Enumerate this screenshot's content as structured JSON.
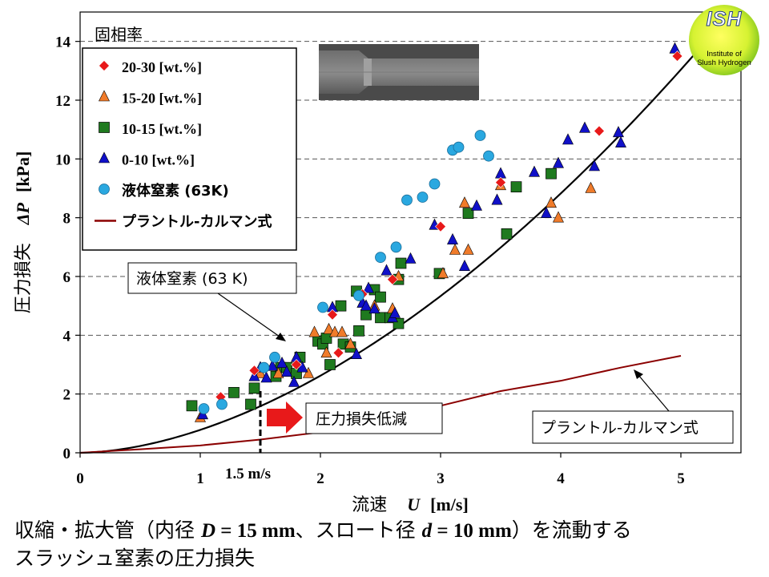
{
  "caption": {
    "line1_a": "収縮・拡大管（内径 ",
    "var_D": "D",
    "line1_b": " = 15 mm",
    "line1_c": "、スロート径 ",
    "var_d": "d",
    "line1_d": " = 10 mm",
    "line1_e": "）を流動する",
    "line2": "スラッシュ窒素の圧力損失"
  },
  "logo": {
    "name": "ISH",
    "line1": "Institute of",
    "line2": "Slush Hydrogen"
  },
  "colors": {
    "red": "#e8191a",
    "orange": "#f07b2a",
    "green": "#1f7a1f",
    "blue": "#1010c8",
    "cyan": "#2aa8e0",
    "prandtl": "#8b0000"
  },
  "chart_data": {
    "type": "scatter",
    "title": "",
    "xlabel_prefix": "流速",
    "xlabel_var": "U",
    "xlabel_unit": "[m/s]",
    "ylabel_prefix": "圧力損失",
    "ylabel_var": "ΔP",
    "ylabel_unit": "[kPa]",
    "xlim": [
      0,
      5.5
    ],
    "ylim": [
      0,
      15
    ],
    "xticks": [
      0,
      1,
      2,
      3,
      4,
      5
    ],
    "yticks": [
      0,
      2,
      4,
      6,
      8,
      10,
      12,
      14
    ],
    "grid": "horizontal dashed",
    "legend_title": "固相率",
    "legend_position": "top-left",
    "series": [
      {
        "name": "20-30 [wt.%]",
        "marker": "diamond",
        "color": "#e8191a",
        "points": [
          [
            1.17,
            1.9
          ],
          [
            1.45,
            2.8
          ],
          [
            1.8,
            3.0
          ],
          [
            2.1,
            4.7
          ],
          [
            2.15,
            3.4
          ],
          [
            2.35,
            5.4
          ],
          [
            2.6,
            5.9
          ],
          [
            3.0,
            7.7
          ],
          [
            3.5,
            9.2
          ],
          [
            4.32,
            10.95
          ],
          [
            4.97,
            13.5
          ]
        ]
      },
      {
        "name": "15-20 [wt.%]",
        "marker": "triangle",
        "color": "#f07b2a",
        "points": [
          [
            1.0,
            1.2
          ],
          [
            1.5,
            2.7
          ],
          [
            1.65,
            2.7
          ],
          [
            1.8,
            3.1
          ],
          [
            1.9,
            2.7
          ],
          [
            1.95,
            4.1
          ],
          [
            2.05,
            3.4
          ],
          [
            2.07,
            4.2
          ],
          [
            2.12,
            4.1
          ],
          [
            2.18,
            4.1
          ],
          [
            2.25,
            3.7
          ],
          [
            2.35,
            5.1
          ],
          [
            2.45,
            5.0
          ],
          [
            2.6,
            4.9
          ],
          [
            2.65,
            6.0
          ],
          [
            3.02,
            6.1
          ],
          [
            3.12,
            6.9
          ],
          [
            3.2,
            8.5
          ],
          [
            3.23,
            6.9
          ],
          [
            3.5,
            9.1
          ],
          [
            3.92,
            8.5
          ],
          [
            3.98,
            8.0
          ],
          [
            4.25,
            9.0
          ]
        ]
      },
      {
        "name": "10-15 [wt.%]",
        "marker": "square",
        "color": "#1f7a1f",
        "points": [
          [
            0.93,
            1.6
          ],
          [
            1.28,
            2.05
          ],
          [
            1.42,
            1.65
          ],
          [
            1.45,
            2.2
          ],
          [
            1.63,
            2.6
          ],
          [
            1.67,
            2.9
          ],
          [
            1.72,
            2.9
          ],
          [
            1.8,
            2.7
          ],
          [
            1.83,
            3.25
          ],
          [
            1.98,
            3.8
          ],
          [
            2.02,
            3.7
          ],
          [
            2.05,
            3.9
          ],
          [
            2.08,
            3.0
          ],
          [
            2.17,
            5.0
          ],
          [
            2.19,
            3.7
          ],
          [
            2.25,
            3.6
          ],
          [
            2.3,
            5.5
          ],
          [
            2.32,
            4.15
          ],
          [
            2.38,
            4.7
          ],
          [
            2.45,
            5.55
          ],
          [
            2.5,
            5.3
          ],
          [
            2.5,
            4.6
          ],
          [
            2.58,
            4.6
          ],
          [
            2.65,
            4.4
          ],
          [
            2.65,
            5.9
          ],
          [
            2.67,
            6.45
          ],
          [
            2.99,
            6.1
          ],
          [
            3.23,
            8.15
          ],
          [
            3.55,
            7.45
          ],
          [
            3.63,
            9.05
          ],
          [
            3.92,
            9.5
          ]
        ]
      },
      {
        "name": "0-10 [wt.%]",
        "marker": "triangle",
        "color": "#1010c8",
        "points": [
          [
            1.02,
            1.3
          ],
          [
            1.45,
            2.6
          ],
          [
            1.5,
            2.9
          ],
          [
            1.55,
            2.55
          ],
          [
            1.6,
            2.95
          ],
          [
            1.68,
            3.05
          ],
          [
            1.72,
            2.75
          ],
          [
            1.78,
            2.4
          ],
          [
            1.8,
            3.25
          ],
          [
            1.85,
            2.9
          ],
          [
            2.1,
            4.95
          ],
          [
            2.3,
            3.35
          ],
          [
            2.35,
            5.1
          ],
          [
            2.38,
            5.0
          ],
          [
            2.4,
            5.6
          ],
          [
            2.45,
            4.9
          ],
          [
            2.55,
            6.2
          ],
          [
            2.6,
            4.6
          ],
          [
            2.62,
            4.75
          ],
          [
            2.75,
            6.6
          ],
          [
            2.95,
            7.75
          ],
          [
            3.1,
            7.25
          ],
          [
            3.2,
            6.35
          ],
          [
            3.3,
            8.4
          ],
          [
            3.47,
            8.6
          ],
          [
            3.5,
            9.5
          ],
          [
            3.78,
            9.55
          ],
          [
            3.88,
            8.15
          ],
          [
            3.98,
            9.85
          ],
          [
            4.06,
            10.65
          ],
          [
            4.2,
            11.05
          ],
          [
            4.28,
            9.75
          ],
          [
            4.48,
            10.9
          ],
          [
            4.5,
            10.55
          ],
          [
            4.95,
            13.75
          ]
        ]
      },
      {
        "name": "液体窒素 (63K)",
        "marker": "circle",
        "color": "#2aa8e0",
        "points": [
          [
            1.03,
            1.5
          ],
          [
            1.18,
            1.65
          ],
          [
            1.53,
            2.9
          ],
          [
            1.62,
            3.25
          ],
          [
            2.02,
            4.95
          ],
          [
            2.32,
            5.35
          ],
          [
            2.5,
            6.65
          ],
          [
            2.63,
            7.0
          ],
          [
            2.72,
            8.6
          ],
          [
            2.85,
            8.7
          ],
          [
            2.95,
            9.15
          ],
          [
            3.1,
            10.3
          ],
          [
            3.15,
            10.4
          ],
          [
            3.33,
            10.8
          ],
          [
            3.4,
            10.1
          ]
        ]
      },
      {
        "name": "プラントル-カルマン式",
        "marker": "line",
        "color": "#8b0000",
        "points": [
          [
            0,
            0
          ],
          [
            0.5,
            0.12
          ],
          [
            1,
            0.25
          ],
          [
            1.5,
            0.45
          ],
          [
            2,
            0.7
          ],
          [
            2.5,
            1.1
          ],
          [
            3,
            1.6
          ],
          [
            3.5,
            2.1
          ],
          [
            4,
            2.45
          ],
          [
            4.5,
            2.9
          ],
          [
            5,
            3.3
          ]
        ]
      }
    ],
    "fit_curve": {
      "name": "液体窒素 (63 K)",
      "color": "#000000",
      "coefficient": 0.78,
      "exponent": 1.75
    },
    "annotations": {
      "ln2_callout": "液体窒素  (63 K)",
      "prandtl_callout": "プラントル-カルマン式",
      "reduction_label": "圧力損失低減",
      "velocity_marker": "1.5 m/s",
      "velocity_marker_value": 1.5
    }
  }
}
